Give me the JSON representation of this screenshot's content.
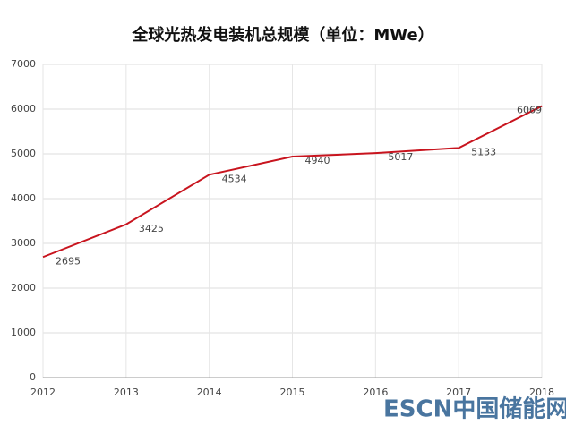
{
  "chart_data": {
    "type": "line",
    "title": "全球光热发电装机总规模（单位：MWe）",
    "x": [
      2012,
      2013,
      2014,
      2015,
      2016,
      2017,
      2018
    ],
    "series": [
      {
        "color": "#c8141e",
        "values": [
          2695,
          3425,
          4534,
          4940,
          5017,
          5133,
          6069
        ]
      }
    ],
    "xlim": [
      2012,
      2018
    ],
    "xticks": [
      2012,
      2013,
      2014,
      2015,
      2016,
      2017,
      2018
    ],
    "ylim": [
      0,
      7000
    ],
    "yticks": [
      0,
      1000,
      2000,
      3000,
      4000,
      5000,
      6000,
      7000
    ],
    "grid": true,
    "watermark": "ESCN中国储能网"
  }
}
